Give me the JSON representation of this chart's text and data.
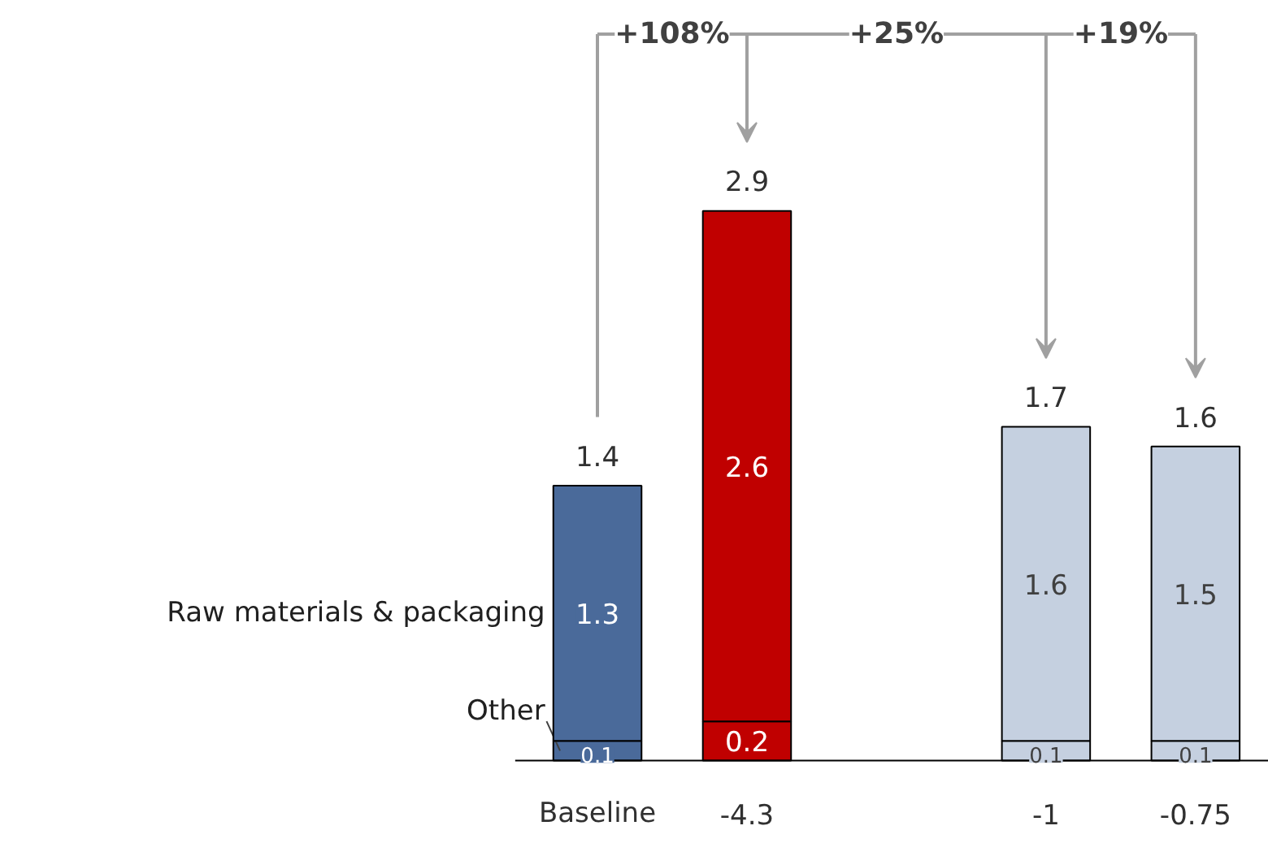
{
  "chart_data": {
    "type": "bar",
    "stacked": true,
    "categories": [
      "Baseline",
      "-4.3",
      null,
      "-1",
      "-0.75"
    ],
    "series": [
      {
        "name": "Other",
        "colors": [
          "#4a6a9a",
          "#c00000",
          null,
          "#c5d0e0",
          "#c5d0e0"
        ],
        "values": [
          0.1,
          0.2,
          null,
          0.1,
          0.1
        ]
      },
      {
        "name": "Raw materials & packaging",
        "colors": [
          "#4a6a9a",
          "#c00000",
          null,
          "#c5d0e0",
          "#c5d0e0"
        ],
        "values": [
          1.3,
          2.6,
          null,
          1.6,
          1.5
        ]
      }
    ],
    "data_labels": true,
    "totals": [
      "1.4",
      "2.9",
      null,
      "1.7",
      "1.6"
    ],
    "annotations": [
      "+108%",
      "+25%",
      "+19%"
    ],
    "grid": false
  }
}
